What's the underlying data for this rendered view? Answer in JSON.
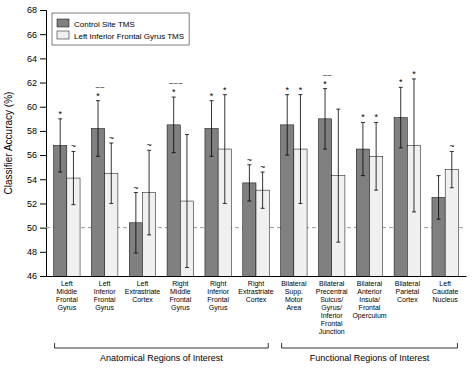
{
  "chart_data": {
    "type": "bar",
    "categories": [
      "Left\nMiddle\nFrontal\nGyrus",
      "Left\nInferior\nFrontal\nGyrus",
      "Left\nExtrastriate\nCortex",
      "Right\nMiddle\nFrontal\nGyrus",
      "Right\nInferior\nFrontal\nGyrus",
      "Right\nExtrastriate\nCortex",
      "Bilateral\nSupp.\nMotor\nArea",
      "Bilateral\nPrecentral\nSulcus/\nGyrus/\nInferior\nFrontal\nJunction",
      "Bilateral\nAnterior\nInsula/\nFrontal\nOperculum",
      "Bilateral\nParietal\nCortex",
      "Left\nCaudate\nNucleus"
    ],
    "series": [
      {
        "name": "Control Site TMS",
        "color": "#808080",
        "values": [
          56.8,
          58.2,
          50.4,
          58.5,
          58.2,
          53.7,
          58.5,
          59.0,
          56.5,
          59.1,
          52.5
        ],
        "errors": [
          2.2,
          2.3,
          2.5,
          2.3,
          2.3,
          1.5,
          2.5,
          2.5,
          2.2,
          2.5,
          1.8
        ],
        "annotations": [
          "*",
          "*",
          "~",
          "*",
          "*",
          "~",
          "*",
          "*",
          "*",
          "*",
          null
        ],
        "annotations_extra": [
          null,
          "~~",
          null,
          "~~~",
          null,
          null,
          null,
          "~~",
          null,
          null,
          null
        ]
      },
      {
        "name": "Left Inferior Frontal Gyrus TMS",
        "color": "#f0f0f0",
        "values": [
          54.1,
          54.5,
          52.9,
          52.2,
          56.5,
          53.1,
          56.5,
          54.3,
          55.9,
          56.8,
          54.8
        ],
        "errors": [
          2.2,
          2.5,
          3.5,
          5.5,
          4.5,
          1.5,
          4.5,
          5.5,
          2.8,
          5.5,
          1.5
        ],
        "annotations": [
          "~",
          "~",
          "~",
          null,
          "*",
          "~",
          "*",
          null,
          "*",
          "*",
          "~"
        ]
      }
    ],
    "ylabel": "Classifier Accuracy (%)",
    "ylim": [
      46,
      68
    ],
    "yticks": [
      46,
      48,
      50,
      52,
      54,
      56,
      58,
      60,
      62,
      64,
      66,
      68
    ],
    "reference_line": 50.0,
    "groups": [
      {
        "label": "Anatomical Regions of Interest",
        "from": 0,
        "to": 5
      },
      {
        "label": "Functional Regions of Interest",
        "from": 6,
        "to": 10
      }
    ],
    "legend": "upper left",
    "grid": false
  }
}
